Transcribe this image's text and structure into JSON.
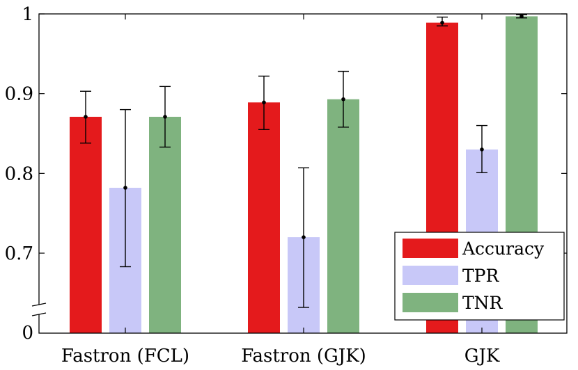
{
  "chart_data": {
    "type": "bar",
    "categories": [
      "Fastron (FCL)",
      "Fastron (GJK)",
      "GJK"
    ],
    "series": [
      {
        "name": "Accuracy",
        "color": "#e41a1c",
        "values": [
          0.871,
          0.889,
          0.989
        ],
        "error_low": [
          0.838,
          0.855,
          0.985
        ],
        "error_high": [
          0.903,
          0.922,
          0.996
        ]
      },
      {
        "name": "TPR",
        "color": "#c8c8f8",
        "values": [
          0.782,
          0.72,
          0.83
        ],
        "error_low": [
          0.683,
          0.632,
          0.801
        ],
        "error_high": [
          0.88,
          0.807,
          0.86
        ]
      },
      {
        "name": "TNR",
        "color": "#7fb37f",
        "values": [
          0.871,
          0.893,
          0.997
        ],
        "error_low": [
          0.833,
          0.858,
          0.995
        ],
        "error_high": [
          0.909,
          0.928,
          0.999
        ]
      }
    ],
    "title": "",
    "xlabel": "",
    "ylabel": "",
    "ylim": [
      0.6,
      1.0
    ],
    "y_axis_break": true,
    "yticks": [
      {
        "value": 0.7,
        "label": "0.7"
      },
      {
        "value": 0.8,
        "label": "0.8"
      },
      {
        "value": 0.9,
        "label": "0.9"
      },
      {
        "value": 1.0,
        "label": "1"
      }
    ],
    "y_bottom_label": "0",
    "grid": false,
    "legend": {
      "placement": "bottom-right"
    }
  }
}
